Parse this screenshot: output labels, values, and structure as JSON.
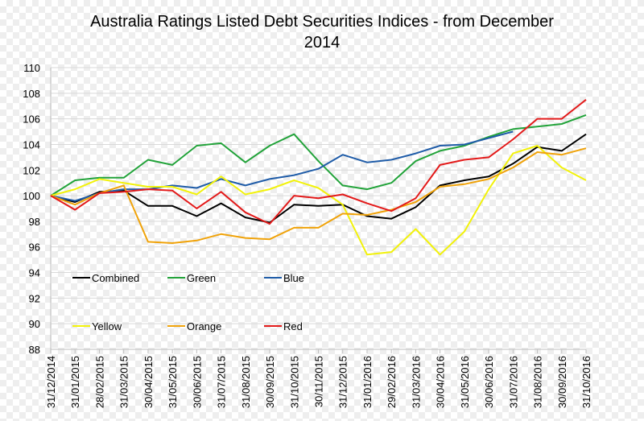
{
  "chart_data": {
    "type": "line",
    "title_lines": [
      "Australia Ratings Listed Debt Securities Indices - from December",
      "2014"
    ],
    "xlabel": "",
    "ylabel": "",
    "ylim": [
      88,
      110
    ],
    "yticks": [
      88,
      90,
      92,
      94,
      96,
      98,
      100,
      102,
      104,
      106,
      108,
      110
    ],
    "grid": "horizontal",
    "legend_position": "lower-left",
    "categories": [
      "31/12/2014",
      "31/01/2015",
      "28/02/2015",
      "31/03/2015",
      "30/04/2015",
      "31/05/2015",
      "30/06/2015",
      "31/07/2015",
      "31/08/2015",
      "30/09/2015",
      "31/10/2015",
      "30/11/2015",
      "31/12/2015",
      "31/01/2016",
      "29/02/2016",
      "31/03/2016",
      "30/04/2016",
      "31/05/2016",
      "30/06/2016",
      "31/07/2016",
      "31/08/2016",
      "30/09/2016",
      "31/10/2016"
    ],
    "series": [
      {
        "name": "Combined",
        "color": "#000000",
        "values": [
          100.0,
          99.5,
          100.3,
          100.4,
          99.2,
          99.2,
          98.4,
          99.4,
          98.3,
          97.9,
          99.3,
          99.2,
          99.3,
          98.4,
          98.2,
          99.1,
          100.8,
          101.2,
          101.5,
          102.5,
          103.8,
          103.5,
          104.8
        ]
      },
      {
        "name": "Green",
        "color": "#22a33a",
        "values": [
          100.0,
          101.2,
          101.4,
          101.4,
          102.8,
          102.4,
          103.9,
          104.1,
          102.6,
          103.9,
          104.8,
          102.7,
          100.8,
          100.5,
          101.0,
          102.7,
          103.5,
          103.9,
          104.6,
          105.2,
          105.4,
          105.6,
          106.3
        ]
      },
      {
        "name": "Blue",
        "color": "#1f5ca8",
        "values": [
          100.0,
          99.6,
          100.2,
          100.5,
          100.5,
          100.8,
          100.6,
          101.3,
          100.8,
          101.3,
          101.6,
          102.1,
          103.2,
          102.6,
          102.8,
          103.3,
          103.9,
          104.0,
          104.5,
          105.0,
          null,
          null,
          null
        ]
      },
      {
        "name": "Yellow",
        "color": "#f2f20a",
        "values": [
          100.0,
          100.5,
          101.3,
          101.0,
          100.7,
          100.7,
          100.1,
          101.5,
          100.1,
          100.5,
          101.2,
          100.6,
          99.3,
          95.4,
          95.6,
          97.4,
          95.4,
          97.2,
          100.5,
          103.3,
          103.9,
          102.2,
          101.2
        ]
      },
      {
        "name": "Orange",
        "color": "#f0a30a",
        "values": [
          100.0,
          99.3,
          100.2,
          100.8,
          96.4,
          96.3,
          96.5,
          97.0,
          96.7,
          96.6,
          97.5,
          97.5,
          98.6,
          98.5,
          98.9,
          99.5,
          100.7,
          100.9,
          101.3,
          102.2,
          103.4,
          103.2,
          103.7
        ]
      },
      {
        "name": "Red",
        "color": "#e31a1a",
        "values": [
          100.0,
          98.9,
          100.2,
          100.3,
          100.5,
          100.4,
          99.0,
          100.3,
          98.7,
          97.8,
          100.0,
          99.8,
          100.1,
          99.4,
          98.8,
          99.8,
          102.4,
          102.8,
          103.0,
          104.4,
          106.0,
          106.0,
          107.5
        ]
      }
    ]
  }
}
